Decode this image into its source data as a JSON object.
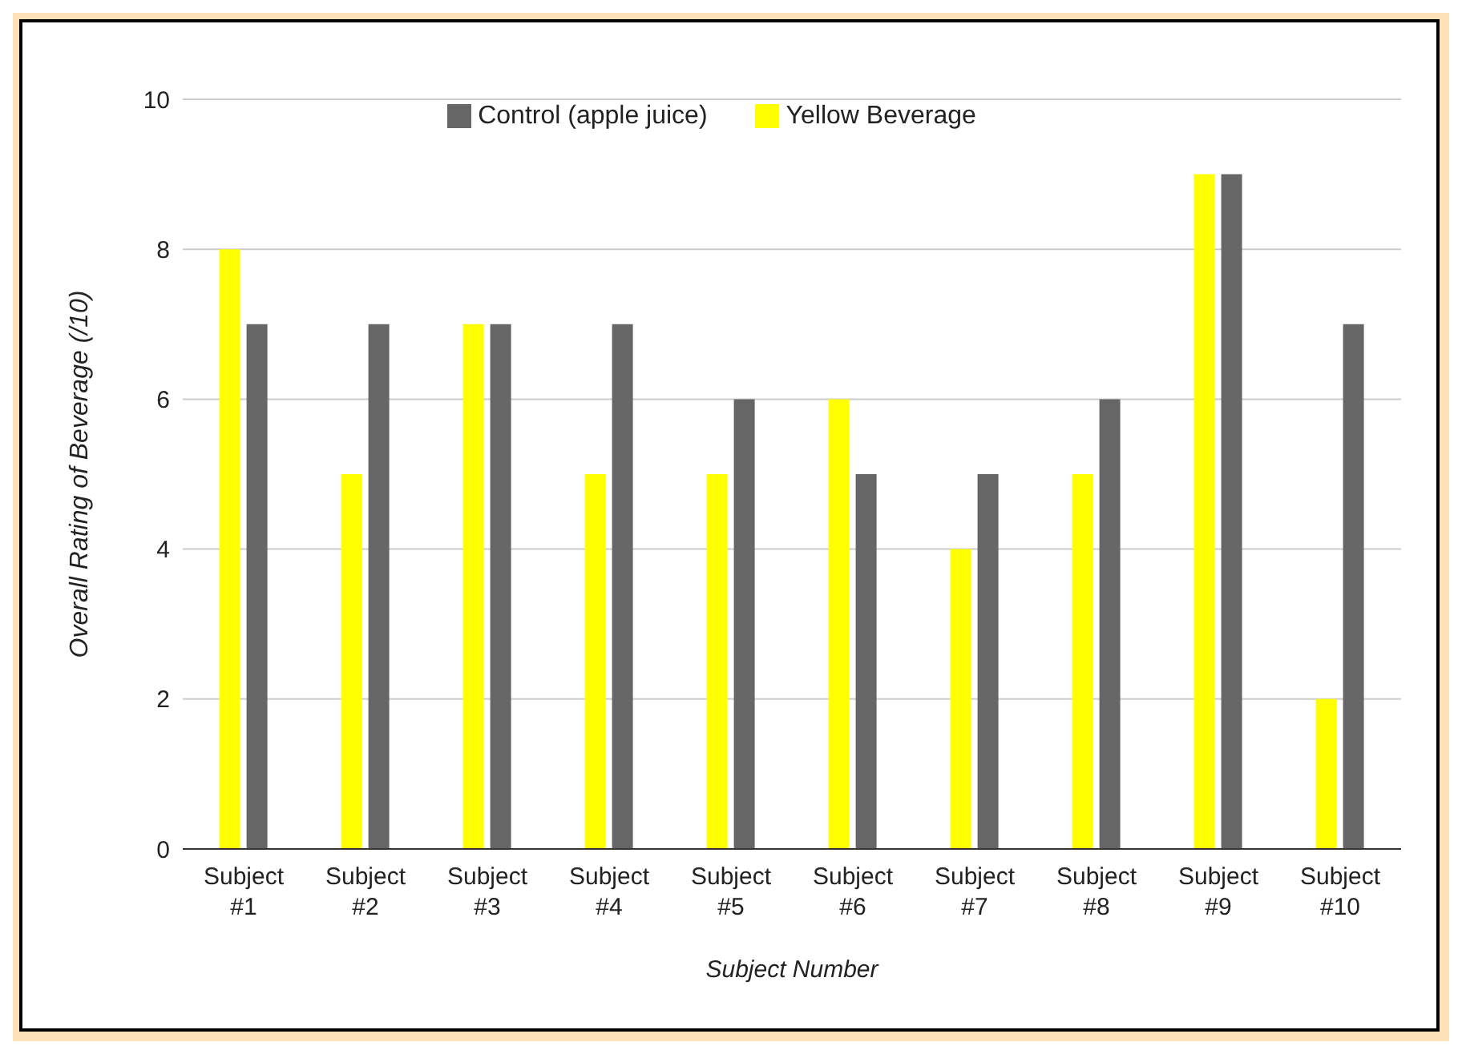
{
  "chart_data": {
    "type": "bar",
    "xlabel": "Subject Number",
    "ylabel": "Overall Rating of Beverage (/10)",
    "categories": [
      "Subject #1",
      "Subject #2",
      "Subject #3",
      "Subject #4",
      "Subject #5",
      "Subject #6",
      "Subject #7",
      "Subject #8",
      "Subject #9",
      "Subject #10"
    ],
    "series": [
      {
        "name": "Yellow Beverage",
        "color": "#ffff00",
        "values": [
          8,
          5,
          7,
          5,
          5,
          6,
          4,
          5,
          9,
          2
        ]
      },
      {
        "name": "Control (apple juice)",
        "color": "#666666",
        "values": [
          7,
          7,
          7,
          7,
          6,
          5,
          5,
          6,
          9,
          7
        ]
      }
    ],
    "ylim": [
      0,
      10
    ],
    "yticks": [
      0,
      2,
      4,
      6,
      8,
      10
    ],
    "grid": "y",
    "legend": "top"
  }
}
